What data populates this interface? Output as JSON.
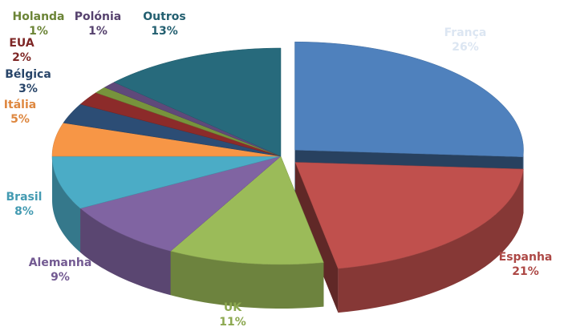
{
  "chart_data": {
    "type": "pie3d",
    "categories": [
      "França",
      "Espanha",
      "UK",
      "Alemanha",
      "Brasil",
      "Itália",
      "Bélgica",
      "EUA",
      "Holanda",
      "Polónia",
      "Outros"
    ],
    "values": [
      26,
      21,
      11,
      9,
      8,
      5,
      3,
      2,
      1,
      1,
      13
    ],
    "value_labels": [
      "26%",
      "21%",
      "11%",
      "9%",
      "8%",
      "5%",
      "3%",
      "2%",
      "1%",
      "1%",
      "13%"
    ],
    "colors": [
      "#4f81bd",
      "#c0504d",
      "#9bbb59",
      "#8064a2",
      "#4bacc6",
      "#f79646",
      "#2c4d75",
      "#8c2b2a",
      "#77933c",
      "#5f497a",
      "#276a7c"
    ],
    "exploded": [
      "França",
      "Espanha"
    ]
  }
}
